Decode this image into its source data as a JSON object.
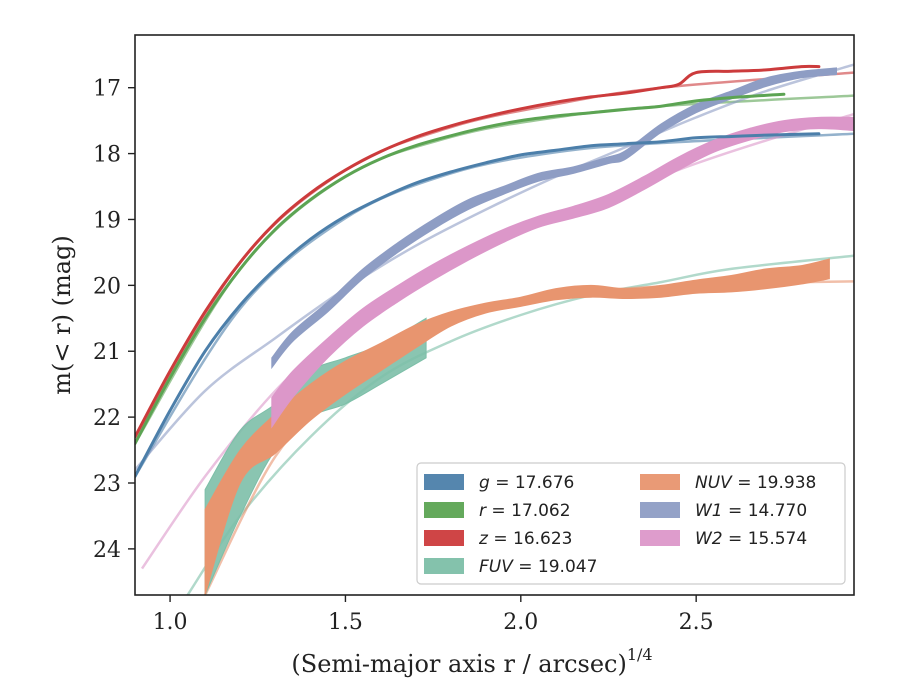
{
  "chart_data": {
    "type": "line",
    "xlabel": "(Semi-major axis r / arcsec)",
    "xlabel_exponent": "1/4",
    "ylabel": "m(< r) (mag)",
    "xlim": [
      0.9,
      2.95
    ],
    "ylim": [
      24.7,
      16.2
    ],
    "y_inverted": true,
    "xticks": [
      1.0,
      1.5,
      2.0,
      2.5
    ],
    "xtick_labels": [
      "1.0",
      "1.5",
      "2.0",
      "2.5"
    ],
    "yticks": [
      17,
      18,
      19,
      20,
      21,
      22,
      23,
      24
    ],
    "ytick_labels": [
      "17",
      "18",
      "19",
      "20",
      "21",
      "22",
      "23",
      "24"
    ],
    "grid": false,
    "legend_position": "lower-right",
    "legend_columns": 2,
    "series": [
      {
        "name": "g = 17.676",
        "label": "g",
        "value": "17.676",
        "color": "#4c7faa",
        "band_width_mag": 0.05,
        "x": [
          0.9,
          1.0,
          1.1,
          1.2,
          1.3,
          1.4,
          1.5,
          1.6,
          1.7,
          1.8,
          1.9,
          2.0,
          2.1,
          2.2,
          2.3,
          2.4,
          2.5,
          2.6,
          2.7,
          2.85
        ],
        "y": [
          22.9,
          21.9,
          21.0,
          20.3,
          19.75,
          19.3,
          18.95,
          18.68,
          18.45,
          18.28,
          18.14,
          18.02,
          17.95,
          17.88,
          17.85,
          17.82,
          17.76,
          17.74,
          17.72,
          17.7
        ],
        "fit": {
          "x": [
            0.9,
            1.2,
            1.5,
            1.8,
            2.1,
            2.4,
            2.95
          ],
          "y": [
            22.9,
            20.35,
            18.98,
            18.3,
            17.98,
            17.84,
            17.7
          ]
        }
      },
      {
        "name": "r = 17.062",
        "label": "r",
        "value": "17.062",
        "color": "#5ca453",
        "band_width_mag": 0.05,
        "x": [
          0.9,
          1.0,
          1.1,
          1.2,
          1.3,
          1.4,
          1.5,
          1.6,
          1.7,
          1.8,
          1.9,
          2.0,
          2.1,
          2.2,
          2.3,
          2.4,
          2.5,
          2.6,
          2.75
        ],
        "y": [
          22.4,
          21.4,
          20.5,
          19.75,
          19.15,
          18.7,
          18.35,
          18.08,
          17.88,
          17.73,
          17.6,
          17.5,
          17.43,
          17.38,
          17.33,
          17.28,
          17.2,
          17.15,
          17.1
        ],
        "fit": {
          "x": [
            0.9,
            1.2,
            1.5,
            1.8,
            2.1,
            2.4,
            2.95
          ],
          "y": [
            22.4,
            19.75,
            18.35,
            17.75,
            17.45,
            17.28,
            17.12
          ]
        }
      },
      {
        "name": "z = 16.623",
        "label": "z",
        "value": "16.623",
        "color": "#cc3b3c",
        "band_width_mag": 0.05,
        "x": [
          0.9,
          1.0,
          1.1,
          1.2,
          1.3,
          1.4,
          1.5,
          1.6,
          1.7,
          1.8,
          1.9,
          2.0,
          2.1,
          2.2,
          2.3,
          2.4,
          2.45,
          2.5,
          2.6,
          2.7,
          2.8,
          2.85
        ],
        "y": [
          22.3,
          21.3,
          20.4,
          19.65,
          19.05,
          18.6,
          18.25,
          17.97,
          17.75,
          17.58,
          17.44,
          17.32,
          17.22,
          17.14,
          17.08,
          17.0,
          16.95,
          16.77,
          16.75,
          16.73,
          16.68,
          16.68
        ],
        "fit": {
          "x": [
            0.9,
            1.2,
            1.5,
            1.8,
            2.1,
            2.4,
            2.95
          ],
          "y": [
            22.3,
            19.65,
            18.25,
            17.6,
            17.25,
            17.0,
            16.77
          ]
        }
      },
      {
        "name": "FUV = 19.047",
        "label": "FUV",
        "value": "19.047",
        "color": "#7dbfa8",
        "x": [
          1.1,
          1.2,
          1.3,
          1.4,
          1.5,
          1.6,
          1.73
        ],
        "y_upper": [
          23.1,
          22.2,
          21.8,
          21.3,
          21.1,
          20.9,
          20.5
        ],
        "y_lower": [
          24.7,
          23.5,
          22.5,
          22.0,
          21.8,
          21.5,
          21.1
        ],
        "fit": {
          "x": [
            1.05,
            1.2,
            1.4,
            1.6,
            1.8,
            2.0,
            2.2,
            2.4,
            2.6,
            2.95
          ],
          "y": [
            24.7,
            23.5,
            22.3,
            21.4,
            20.85,
            20.45,
            20.15,
            19.95,
            19.75,
            19.55
          ]
        }
      },
      {
        "name": "NUV = 19.938",
        "label": "NUV",
        "value": "19.938",
        "color": "#e8956f",
        "x": [
          1.1,
          1.2,
          1.3,
          1.4,
          1.5,
          1.6,
          1.7,
          1.8,
          1.9,
          2.0,
          2.1,
          2.2,
          2.3,
          2.4,
          2.5,
          2.6,
          2.7,
          2.8,
          2.88
        ],
        "y_upper": [
          23.4,
          22.5,
          21.95,
          21.5,
          21.15,
          20.88,
          20.6,
          20.4,
          20.27,
          20.18,
          20.05,
          20.0,
          20.05,
          20.0,
          19.92,
          19.85,
          19.75,
          19.7,
          19.6
        ],
        "y_lower": [
          24.7,
          23.0,
          22.55,
          22.05,
          21.65,
          21.3,
          20.95,
          20.62,
          20.42,
          20.32,
          20.22,
          20.18,
          20.2,
          20.18,
          20.12,
          20.1,
          20.05,
          19.98,
          19.9
        ],
        "fit": {
          "x": [
            1.1,
            1.3,
            1.5,
            1.7,
            1.9,
            2.1,
            2.3,
            2.5,
            2.7,
            2.95
          ],
          "y": [
            24.7,
            22.6,
            21.5,
            20.75,
            20.35,
            20.15,
            20.05,
            19.99,
            19.96,
            19.94
          ]
        }
      },
      {
        "name": "W1 = 14.770",
        "label": "W1",
        "value": "14.770",
        "color": "#8e9dc4",
        "x": [
          1.29,
          1.35,
          1.45,
          1.55,
          1.65,
          1.75,
          1.85,
          1.95,
          2.05,
          2.15,
          2.25,
          2.3,
          2.4,
          2.5,
          2.6,
          2.7,
          2.8,
          2.9
        ],
        "y_upper": [
          21.1,
          20.7,
          20.25,
          19.75,
          19.35,
          19.0,
          18.7,
          18.5,
          18.3,
          18.2,
          18.05,
          17.95,
          17.55,
          17.25,
          17.05,
          16.85,
          16.75,
          16.7
        ],
        "y_lower": [
          21.25,
          20.85,
          20.4,
          19.9,
          19.5,
          19.15,
          18.85,
          18.62,
          18.42,
          18.3,
          18.15,
          18.08,
          17.68,
          17.38,
          17.17,
          16.98,
          16.85,
          16.8
        ],
        "fit": {
          "x": [
            0.9,
            1.1,
            1.3,
            1.5,
            1.7,
            1.9,
            2.1,
            2.3,
            2.5,
            2.7,
            2.95
          ],
          "y": [
            22.8,
            21.6,
            20.8,
            20.05,
            19.4,
            18.85,
            18.35,
            17.9,
            17.45,
            17.05,
            16.65
          ]
        }
      },
      {
        "name": "W2 = 15.574",
        "label": "W2",
        "value": "15.574",
        "color": "#dc97c9",
        "x": [
          1.29,
          1.35,
          1.45,
          1.55,
          1.65,
          1.75,
          1.85,
          1.95,
          2.05,
          2.15,
          2.25,
          2.35,
          2.45,
          2.55,
          2.65,
          2.75,
          2.85,
          2.95
        ],
        "y_upper": [
          21.7,
          21.3,
          20.8,
          20.35,
          20.0,
          19.68,
          19.4,
          19.15,
          18.95,
          18.8,
          18.62,
          18.35,
          18.05,
          17.8,
          17.62,
          17.5,
          17.45,
          17.45
        ],
        "y_lower": [
          22.15,
          21.7,
          21.1,
          20.62,
          20.25,
          19.92,
          19.62,
          19.35,
          19.12,
          18.98,
          18.82,
          18.55,
          18.25,
          17.98,
          17.8,
          17.67,
          17.62,
          17.65
        ],
        "fit": {
          "x": [
            0.92,
            1.1,
            1.3,
            1.5,
            1.7,
            1.9,
            2.1,
            2.3,
            2.5,
            2.7,
            2.95
          ],
          "y": [
            24.3,
            22.9,
            21.6,
            20.65,
            19.95,
            19.4,
            18.95,
            18.55,
            18.15,
            17.8,
            17.4
          ]
        }
      }
    ]
  }
}
